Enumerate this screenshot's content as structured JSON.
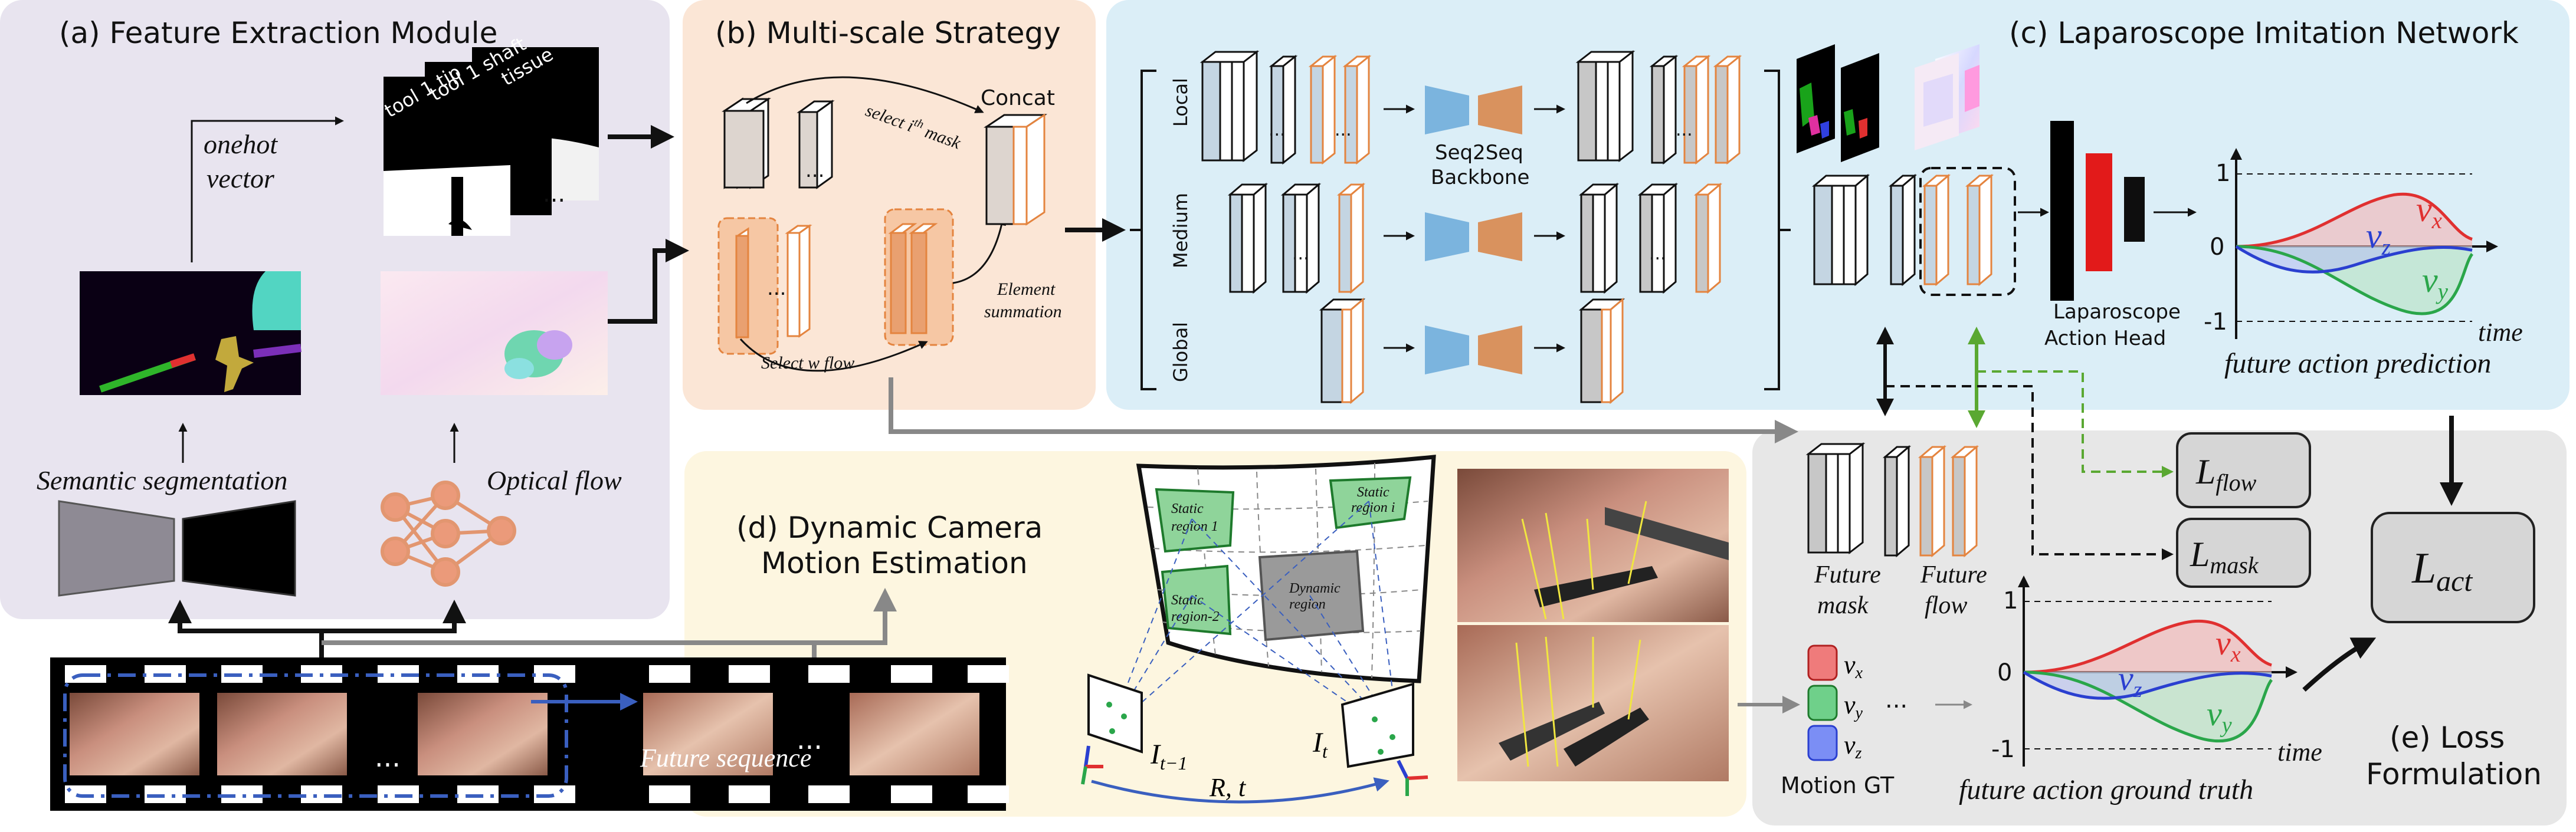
{
  "sections": {
    "a": "(a) Feature Extraction Module",
    "b": "(b) Multi-scale Strategy",
    "c": "(c) Laparoscope Imitation Network",
    "d_line1": "(d) Dynamic Camera",
    "d_line2": "Motion Estimation",
    "e_line1": "(e) Loss",
    "e_line2": "Formulation"
  },
  "feature_extraction": {
    "onehot_line1": "onehot",
    "onehot_line2": "vector",
    "mask_labels": [
      "tool 1 tip",
      "tool 1 shaft",
      "tissue"
    ],
    "ellipsis": "...",
    "semantic_segmentation": "Semantic segmentation",
    "optical_flow": "Optical flow"
  },
  "multiscale": {
    "select_mask_prefix": "select ",
    "select_mask_i": "i",
    "select_mask_th": "th",
    "select_mask_suffix": " mask",
    "concat": "Concat",
    "select_flow": "Select w flow",
    "element_line1": "Element",
    "element_line2": "summation"
  },
  "imitation_network": {
    "scales": [
      "Local",
      "Medium",
      "Global"
    ],
    "seq2seq_line1": "Seq2Seq",
    "seq2seq_line2": "Backbone",
    "head_line1": "Laparoscope",
    "head_line2": "Action Head",
    "future_action_prediction": "future action prediction",
    "tick_1": "1",
    "tick_0": "0",
    "tick_m1": "-1",
    "time": "time",
    "vx": "v",
    "vx_sub": "x",
    "vy": "v",
    "vy_sub": "y",
    "vz": "v",
    "vz_sub": "z"
  },
  "camera_motion": {
    "static_region_1": [
      "Static",
      "region 1"
    ],
    "static_region_i": [
      "Static",
      "region i"
    ],
    "static_region_2": [
      "Static",
      "region-2"
    ],
    "dynamic_region": [
      "Dynamic",
      "region"
    ],
    "I_prev": "I",
    "I_prev_sub": "t−1",
    "I_cur": "I",
    "I_cur_sub": "t",
    "Rt": "R, t",
    "future_sequence": "Future sequence",
    "ellipsis": "..."
  },
  "loss": {
    "future_mask_line1": "Future",
    "future_mask_line2": "mask",
    "future_flow_line1": "Future",
    "future_flow_line2": "flow",
    "L_flow": "L",
    "L_flow_sub": "flow",
    "L_mask": "L",
    "L_mask_sub": "mask",
    "L_act": "L",
    "L_act_sub": "act",
    "motion_gt": "Motion GT",
    "motion_vx": "v",
    "motion_vx_sub": "x",
    "motion_vy": "v",
    "motion_vy_sub": "y",
    "motion_vz": "v",
    "motion_vz_sub": "z",
    "ellipsis": "...",
    "future_action_ground_truth": "future action ground truth",
    "tick_1": "1",
    "tick_0": "0",
    "tick_m1": "-1",
    "time": "time"
  },
  "colors": {
    "panel_a": "#e8e4ef",
    "panel_b": "#fbe6d6",
    "panel_c": "#dbeef7",
    "panel_d": "#fdf6e0",
    "panel_e": "#e7e7e7",
    "orange": "#e4843f",
    "blue_block": "#7bb4de",
    "orange_block": "#d9925e",
    "red": "#e03030",
    "green": "#2aa64a",
    "blue": "#2a3fd0",
    "dashed_green": "#5aa832"
  }
}
